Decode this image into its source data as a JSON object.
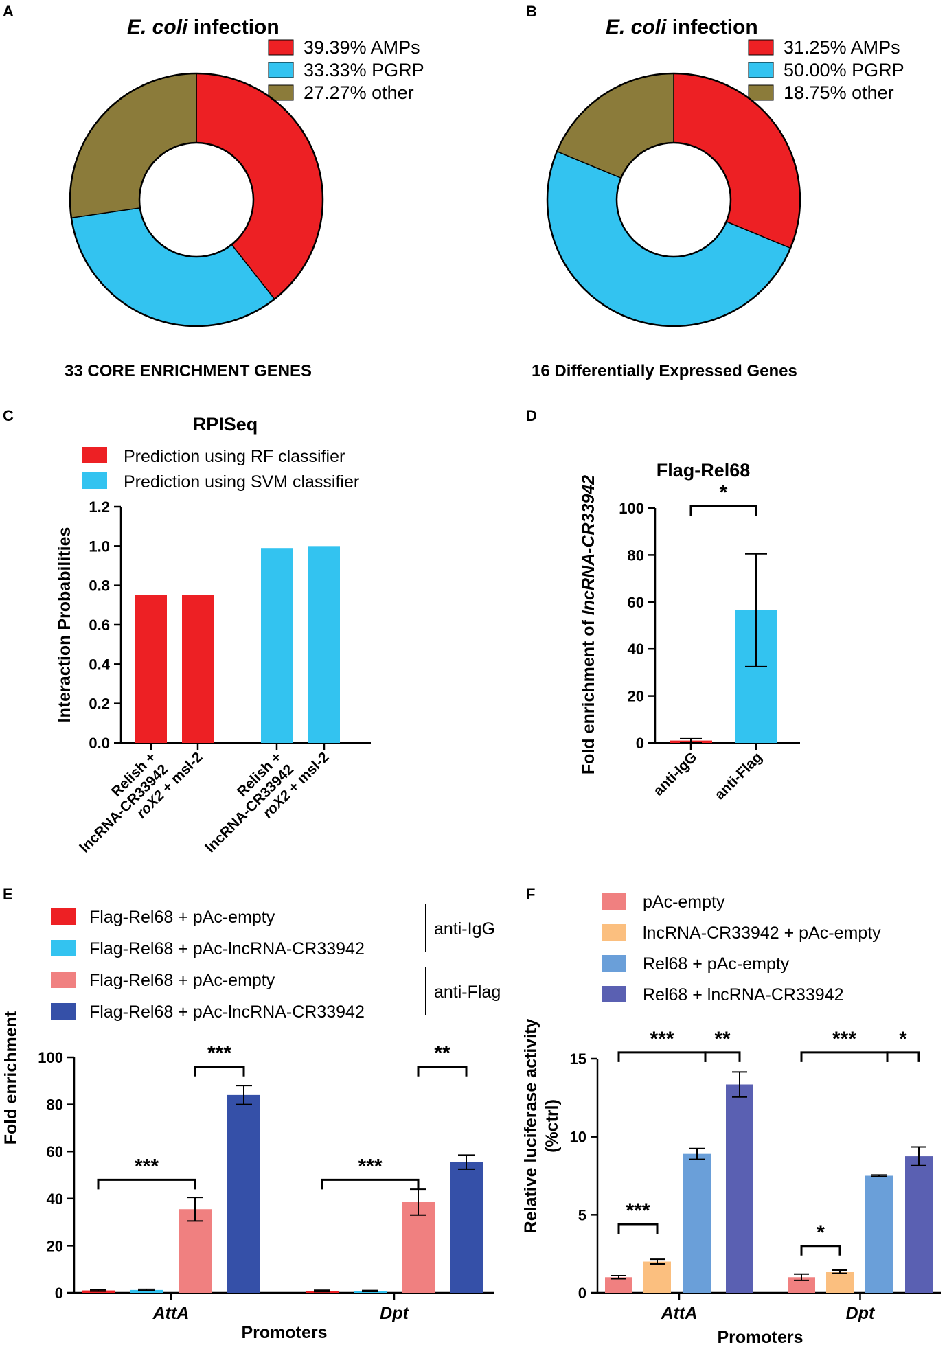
{
  "colors": {
    "red": "#ED2024",
    "cyan": "#33C3F0",
    "olive": "#8B7B3A",
    "pink": "#F08080",
    "orange": "#FBBF7F",
    "lightblue": "#6A9FD9",
    "purple": "#5A60B2",
    "navy": "#3550A8",
    "black": "#000000"
  },
  "chart_data": [
    {
      "panel": "A",
      "type": "pie",
      "title_italic": "E. coli",
      "title_rest": " infection",
      "caption": "33 CORE ENRICHMENT GENES",
      "slices": [
        {
          "label": "39.39%  AMPs",
          "category": "AMPs",
          "value": 39.39,
          "color": "#ED2024"
        },
        {
          "label": "33.33%  PGRP",
          "category": "PGRP",
          "value": 33.33,
          "color": "#33C3F0"
        },
        {
          "label": "27.27%  other",
          "category": "other",
          "value": 27.27,
          "color": "#8B7B3A"
        }
      ]
    },
    {
      "panel": "B",
      "type": "pie",
      "title_italic": "E. coli",
      "title_rest": " infection",
      "caption": "16 Differentially Expressed Genes",
      "slices": [
        {
          "label": "31.25%  AMPs",
          "category": "AMPs",
          "value": 31.25,
          "color": "#ED2024"
        },
        {
          "label": "50.00%  PGRP",
          "category": "PGRP",
          "value": 50.0,
          "color": "#33C3F0"
        },
        {
          "label": "18.75%  other",
          "category": "other",
          "value": 18.75,
          "color": "#8B7B3A"
        }
      ]
    },
    {
      "panel": "C",
      "type": "bar",
      "title": "RPISeq",
      "ylabel": "Interaction Probabilities",
      "ylim": [
        0,
        1.2
      ],
      "yticks": [
        "0.0",
        "0.2",
        "0.4",
        "0.6",
        "0.8",
        "1.0",
        "1.2"
      ],
      "legend": [
        {
          "label": "Prediction using RF classifier",
          "color": "#ED2024"
        },
        {
          "label": "Prediction using SVM classifier",
          "color": "#33C3F0"
        }
      ],
      "bars": [
        {
          "line1": "Relish +",
          "line2": "lncRNA-CR33942",
          "value": 0.75,
          "color": "#ED2024"
        },
        {
          "line1": "roX2 + msl-2",
          "line2": "",
          "value": 0.75,
          "color": "#ED2024"
        },
        {
          "line1": "Relish +",
          "line2": "lncRNA-CR33942",
          "value": 0.99,
          "color": "#33C3F0"
        },
        {
          "line1": "roX2 + msl-2",
          "line2": "",
          "value": 1.0,
          "color": "#33C3F0"
        }
      ]
    },
    {
      "panel": "D",
      "type": "bar",
      "title": "Flag-Rel68",
      "ylabel_prefix": "Fold enrichment of ",
      "ylabel_italic": "lncRNA-CR33942",
      "ylim": [
        0,
        100
      ],
      "yticks": [
        "0",
        "20",
        "40",
        "60",
        "80",
        "100"
      ],
      "bars": [
        {
          "label": "anti-IgG",
          "value": 1.0,
          "err": 0.8,
          "color": "#ED2024"
        },
        {
          "label": "anti-Flag",
          "value": 56.5,
          "err": 24,
          "color": "#33C3F0"
        }
      ],
      "significance": "*"
    },
    {
      "panel": "E",
      "type": "bar",
      "ylabel": "Fold enrichment",
      "xlabel": "Promoters",
      "ylim": [
        0,
        100
      ],
      "yticks": [
        "0",
        "20",
        "40",
        "60",
        "80",
        "100"
      ],
      "categories": [
        "AttA",
        "Dpt"
      ],
      "legend_groups": [
        {
          "label": "anti-IgG",
          "series": [
            0,
            1
          ]
        },
        {
          "label": "anti-Flag",
          "series": [
            2,
            3
          ]
        }
      ],
      "series": [
        {
          "name": "Flag-Rel68 + pAc-empty",
          "color": "#ED2024",
          "values": [
            1.0,
            0.8
          ],
          "errs": [
            0.3,
            0.3
          ]
        },
        {
          "name": "Flag-Rel68 + pAc-lncRNA-CR33942",
          "color": "#33C3F0",
          "values": [
            1.2,
            0.8
          ],
          "errs": [
            0.3,
            0.2
          ]
        },
        {
          "name": "Flag-Rel68 + pAc-empty",
          "color": "#F08080",
          "values": [
            35.5,
            38.5
          ],
          "errs": [
            5,
            5.5
          ]
        },
        {
          "name": "Flag-Rel68 + pAc-lncRNA-CR33942",
          "color": "#3550A8",
          "values": [
            84.0,
            55.5
          ],
          "errs": [
            4,
            3
          ]
        }
      ],
      "brackets": [
        {
          "category": 0,
          "from": 0,
          "to": 2,
          "y": 48,
          "label": "***"
        },
        {
          "category": 0,
          "from": 2,
          "to": 3,
          "y": 96,
          "label": "***"
        },
        {
          "category": 1,
          "from": 0,
          "to": 2,
          "y": 48,
          "label": "***"
        },
        {
          "category": 1,
          "from": 2,
          "to": 3,
          "y": 96,
          "label": "**"
        }
      ]
    },
    {
      "panel": "F",
      "type": "bar",
      "ylabel1": "Relative luciferase activity",
      "ylabel2": "(%ctrl)",
      "xlabel": "Promoters",
      "ylim": [
        0,
        15
      ],
      "yticks": [
        "0",
        "5",
        "10",
        "15"
      ],
      "categories": [
        "AttA",
        "Dpt"
      ],
      "series": [
        {
          "name": "pAc-empty",
          "color": "#F08080",
          "values": [
            1.0,
            1.0
          ],
          "errs": [
            0.1,
            0.2
          ]
        },
        {
          "name": "lncRNA-CR33942 + pAc-empty",
          "color": "#FBBF7F",
          "values": [
            2.0,
            1.35
          ],
          "errs": [
            0.15,
            0.1
          ]
        },
        {
          "name": "Rel68 + pAc-empty",
          "color": "#6A9FD9",
          "values": [
            8.9,
            7.5
          ],
          "errs": [
            0.35,
            0.05
          ]
        },
        {
          "name": "Rel68 + lncRNA-CR33942",
          "color": "#5A60B2",
          "values": [
            13.35,
            8.75
          ],
          "errs": [
            0.8,
            0.6
          ]
        }
      ],
      "brackets": [
        {
          "category": 0,
          "from": 0,
          "to": 1,
          "y": 4.4,
          "label": "***"
        },
        {
          "category": 0,
          "from": 0,
          "to": 2,
          "y": 15.4,
          "label": "***"
        },
        {
          "category": 0,
          "from": 2,
          "to": 3,
          "y": 15.4,
          "label": "**"
        },
        {
          "category": 1,
          "from": 0,
          "to": 1,
          "y": 3.0,
          "label": "*"
        },
        {
          "category": 1,
          "from": 0,
          "to": 2,
          "y": 15.4,
          "label": "***"
        },
        {
          "category": 1,
          "from": 2,
          "to": 3,
          "y": 15.4,
          "label": "*"
        }
      ]
    }
  ]
}
